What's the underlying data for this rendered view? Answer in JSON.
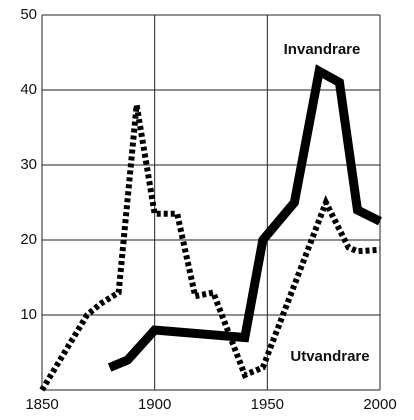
{
  "chart_data": {
    "type": "line",
    "xlim": [
      1850,
      2000
    ],
    "ylim": [
      0,
      50
    ],
    "xticks": [
      1850,
      1900,
      1950,
      2000
    ],
    "yticks": [
      10,
      20,
      30,
      40,
      50
    ],
    "grid": true,
    "series": [
      {
        "name": "Invandrare",
        "color": "#000000",
        "style": "solid",
        "x": [
          1880,
          1888,
          1900,
          1940,
          1948,
          1962,
          1973,
          1982,
          1990,
          2000
        ],
        "values": [
          3,
          4,
          8,
          7,
          20,
          25,
          42.5,
          41,
          24,
          22.5
        ]
      },
      {
        "name": "Utvandrare",
        "color": "#000000",
        "style": "dotted",
        "x": [
          1850,
          1870,
          1876,
          1884,
          1892,
          1900,
          1910,
          1918,
          1926,
          1940,
          1948,
          1976,
          1986,
          1990,
          2000
        ],
        "values": [
          0,
          10,
          11.5,
          13,
          38,
          23.5,
          23.5,
          12.5,
          13,
          2,
          3,
          25,
          19,
          18.5,
          18.7
        ]
      }
    ]
  }
}
